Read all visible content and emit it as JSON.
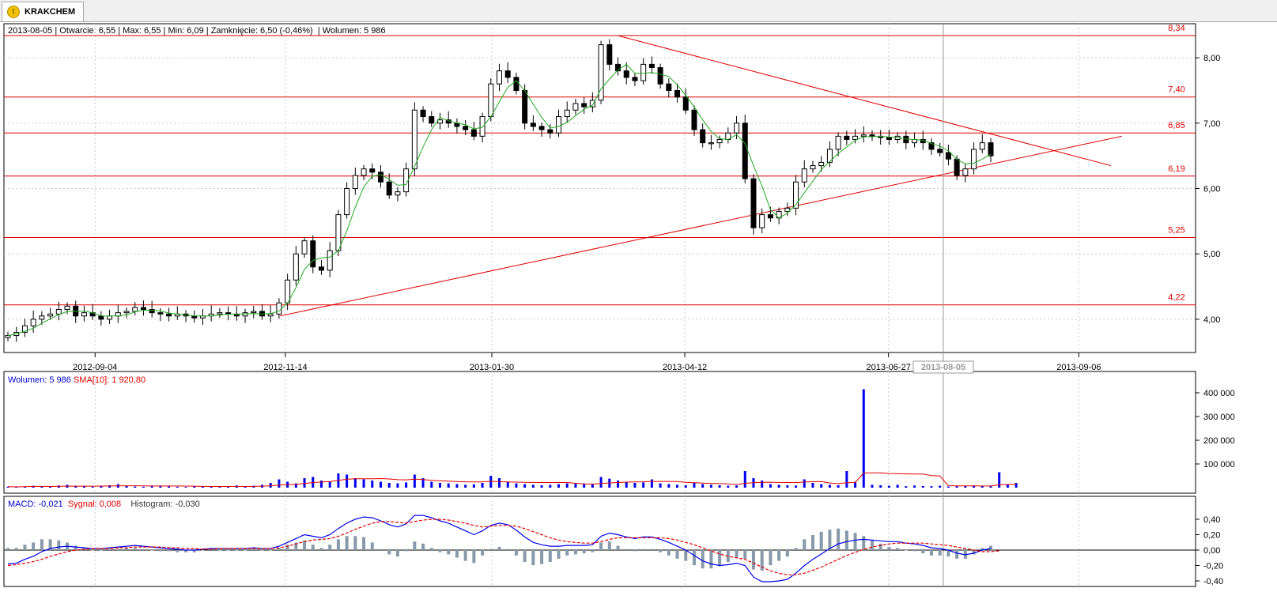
{
  "tab": {
    "label": "KRAKCHEM",
    "icon": "warning-icon"
  },
  "info_bar": {
    "date": "2013-08-05",
    "open": "Otwarcie: 6,55",
    "max": "Max: 6,55",
    "min": "Min: 6,09",
    "close": "Zamknięcie: 6,50 (-0,46%)",
    "volume": "Wolumen: 5 986"
  },
  "volume_legend": {
    "volume": "Wolumen: 5 986",
    "sma": "SMA[10]: 1 920,80"
  },
  "macd_legend": {
    "macd": "MACD: -0,021",
    "signal": "Sygnał: 0,008",
    "histogram": "Histogram: -0,030"
  },
  "cursor_date_label": "2013-08-05",
  "colors": {
    "candle": "#000000",
    "sma": "#22aa22",
    "levels": "#e00000",
    "volume": "#0000ee",
    "macd": "#0000ee",
    "signal": "#e00000",
    "hist": "#8899aa"
  },
  "chart_data": [
    {
      "type": "candlestick",
      "x_dates": [
        "2012-09-04",
        "2012-11-14",
        "2013-01-30",
        "2013-04-12",
        "2013-06-27",
        "2013-09-06"
      ],
      "y_ticks": [
        "4,00",
        "5,00",
        "6,00",
        "7,00",
        "8,00"
      ],
      "ylim": [
        3.6,
        8.4
      ],
      "horizontal_levels": [
        {
          "value": 8.34,
          "label": "8,34"
        },
        {
          "value": 7.4,
          "label": "7,40"
        },
        {
          "value": 6.85,
          "label": "6,85"
        },
        {
          "value": 6.19,
          "label": "6,19"
        },
        {
          "value": 5.25,
          "label": "5,25"
        },
        {
          "value": 4.22,
          "label": "4,22"
        }
      ],
      "trend_lines": [
        {
          "from": {
            "date": "2013-03-18",
            "value": 8.34
          },
          "to": {
            "date": "2013-09-18",
            "value": 6.35
          }
        },
        {
          "from": {
            "date": "2012-11-12",
            "value": 4.05
          },
          "to": {
            "date": "2013-09-22",
            "value": 6.8
          }
        }
      ],
      "close_series": [
        3.75,
        3.8,
        3.9,
        4.0,
        4.05,
        4.08,
        4.15,
        4.2,
        4.05,
        4.1,
        4.05,
        4.0,
        4.05,
        4.1,
        4.12,
        4.18,
        4.15,
        4.1,
        4.08,
        4.05,
        4.08,
        4.05,
        4.02,
        4.05,
        4.08,
        4.1,
        4.08,
        4.05,
        4.1,
        4.12,
        4.05,
        4.08,
        4.25,
        4.6,
        5.0,
        5.2,
        4.8,
        4.75,
        5.05,
        5.6,
        6.0,
        6.2,
        6.3,
        6.25,
        6.1,
        5.9,
        5.95,
        6.3,
        7.2,
        7.1,
        7.0,
        7.05,
        7.0,
        6.95,
        6.9,
        6.8,
        7.1,
        7.6,
        7.8,
        7.7,
        7.5,
        7.0,
        6.95,
        6.9,
        6.85,
        7.1,
        7.2,
        7.3,
        7.25,
        7.35,
        8.2,
        7.9,
        7.8,
        7.7,
        7.65,
        7.9,
        7.85,
        7.6,
        7.5,
        7.4,
        7.2,
        6.9,
        6.7,
        6.7,
        6.75,
        6.85,
        7.0,
        6.15,
        5.4,
        5.6,
        5.55,
        5.65,
        5.7,
        6.1,
        6.3,
        6.35,
        6.4,
        6.6,
        6.8,
        6.75,
        6.8,
        6.82,
        6.8,
        6.78,
        6.75,
        6.8,
        6.7,
        6.75,
        6.7,
        6.6,
        6.55,
        6.45,
        6.2,
        6.3,
        6.6,
        6.7,
        6.5
      ]
    },
    {
      "type": "bar",
      "name": "Wolumen",
      "y_ticks": [
        "100 000",
        "200 000",
        "300 000",
        "400 000"
      ],
      "ylim": [
        0,
        420000
      ],
      "spike": {
        "date": "2013-07-22",
        "value": 415000
      },
      "sma_label": "SMA[10]",
      "values": [
        4000,
        3000,
        5000,
        8000,
        6000,
        4000,
        9000,
        12000,
        7000,
        5000,
        4000,
        6000,
        10000,
        15000,
        8000,
        5000,
        4000,
        6000,
        8000,
        5000,
        4000,
        3000,
        5000,
        7000,
        4000,
        3000,
        6000,
        9000,
        5000,
        8000,
        12000,
        20000,
        35000,
        25000,
        18000,
        40000,
        45000,
        30000,
        25000,
        60000,
        55000,
        40000,
        35000,
        30000,
        25000,
        20000,
        18000,
        22000,
        55000,
        40000,
        25000,
        20000,
        18000,
        15000,
        12000,
        14000,
        20000,
        50000,
        40000,
        25000,
        18000,
        15000,
        12000,
        10000,
        12000,
        15000,
        18000,
        20000,
        15000,
        14000,
        45000,
        38000,
        30000,
        25000,
        20000,
        22000,
        35000,
        18000,
        15000,
        12000,
        10000,
        22000,
        15000,
        12000,
        10000,
        8000,
        9000,
        70000,
        40000,
        30000,
        15000,
        12000,
        10000,
        9000,
        35000,
        20000,
        15000,
        12000,
        10000,
        70000,
        25000,
        415000,
        12000,
        10000,
        8000,
        12000,
        6000,
        9000,
        7000,
        6000,
        8000,
        5000,
        6000,
        7000,
        9000,
        8000,
        6000,
        65000,
        12000,
        20000
      ]
    },
    {
      "type": "line",
      "name": "MACD",
      "y_ticks": [
        "-0,40",
        "-0,20",
        "0,00",
        "0,20",
        "0,40"
      ],
      "ylim": [
        -0.45,
        0.45
      ],
      "series": [
        {
          "name": "MACD",
          "values": [
            -0.18,
            -0.17,
            -0.12,
            -0.08,
            -0.02,
            0.02,
            0.04,
            0.05,
            0.04,
            0.03,
            0.02,
            0.02,
            0.03,
            0.04,
            0.05,
            0.06,
            0.05,
            0.04,
            0.03,
            0.02,
            0.01,
            0.0,
            0.0,
            0.01,
            0.02,
            0.02,
            0.02,
            0.02,
            0.02,
            0.03,
            0.02,
            0.02,
            0.05,
            0.1,
            0.15,
            0.2,
            0.18,
            0.16,
            0.2,
            0.28,
            0.35,
            0.4,
            0.43,
            0.42,
            0.38,
            0.33,
            0.3,
            0.34,
            0.45,
            0.45,
            0.42,
            0.38,
            0.35,
            0.3,
            0.25,
            0.2,
            0.25,
            0.32,
            0.35,
            0.33,
            0.26,
            0.17,
            0.1,
            0.07,
            0.05,
            0.05,
            0.06,
            0.06,
            0.06,
            0.07,
            0.18,
            0.22,
            0.2,
            0.17,
            0.15,
            0.17,
            0.17,
            0.14,
            0.1,
            0.05,
            0.0,
            -0.07,
            -0.14,
            -0.18,
            -0.2,
            -0.19,
            -0.17,
            -0.2,
            -0.35,
            -0.41,
            -0.41,
            -0.4,
            -0.38,
            -0.3,
            -0.2,
            -0.12,
            -0.05,
            0.02,
            0.08,
            0.11,
            0.13,
            0.14,
            0.13,
            0.12,
            0.11,
            0.11,
            0.09,
            0.08,
            0.06,
            0.03,
            0.02,
            0.0,
            -0.04,
            -0.06,
            -0.04,
            0.0,
            0.02
          ]
        },
        {
          "name": "Sygnał",
          "values": [
            -0.2,
            -0.19,
            -0.17,
            -0.15,
            -0.12,
            -0.08,
            -0.05,
            -0.02,
            0.0,
            0.01,
            0.02,
            0.02,
            0.02,
            0.03,
            0.03,
            0.04,
            0.04,
            0.04,
            0.04,
            0.03,
            0.03,
            0.02,
            0.02,
            0.01,
            0.01,
            0.02,
            0.02,
            0.02,
            0.02,
            0.02,
            0.02,
            0.02,
            0.03,
            0.05,
            0.08,
            0.11,
            0.13,
            0.14,
            0.15,
            0.18,
            0.22,
            0.27,
            0.31,
            0.35,
            0.37,
            0.37,
            0.36,
            0.35,
            0.37,
            0.39,
            0.4,
            0.4,
            0.39,
            0.37,
            0.35,
            0.32,
            0.3,
            0.31,
            0.32,
            0.32,
            0.31,
            0.28,
            0.24,
            0.2,
            0.16,
            0.13,
            0.11,
            0.1,
            0.09,
            0.09,
            0.11,
            0.14,
            0.16,
            0.16,
            0.16,
            0.16,
            0.16,
            0.16,
            0.15,
            0.13,
            0.1,
            0.07,
            0.03,
            -0.01,
            -0.05,
            -0.08,
            -0.1,
            -0.12,
            -0.17,
            -0.22,
            -0.27,
            -0.3,
            -0.32,
            -0.32,
            -0.3,
            -0.26,
            -0.22,
            -0.17,
            -0.12,
            -0.07,
            -0.03,
            0.01,
            0.04,
            0.06,
            0.08,
            0.09,
            0.09,
            0.09,
            0.09,
            0.08,
            0.07,
            0.06,
            0.04,
            0.02,
            0.0,
            -0.02,
            -0.02,
            -0.01
          ]
        }
      ]
    }
  ]
}
